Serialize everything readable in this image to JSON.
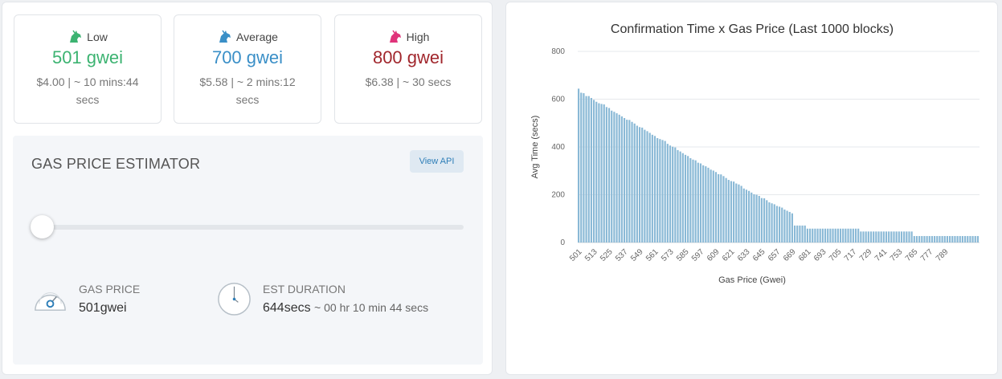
{
  "cards": [
    {
      "label": "Low",
      "price": "501 gwei",
      "detail": "$4.00 | ~ 10 mins:44 secs",
      "color": "#3cb371",
      "icon": "unicorn-icon"
    },
    {
      "label": "Average",
      "price": "700 gwei",
      "detail": "$5.58 | ~ 2 mins:12 secs",
      "color": "#3a8fc7",
      "icon": "unicorn-icon"
    },
    {
      "label": "High",
      "price": "800 gwei",
      "detail": "$6.38 | ~ 30 secs",
      "color": "#a1272d",
      "icon": "unicorn-icon"
    }
  ],
  "estimator": {
    "title": "GAS PRICE ESTIMATOR",
    "view_api": "View API",
    "slider_fraction": 0.0,
    "gas_price_label": "GAS PRICE",
    "gas_price_value": "501gwei",
    "duration_label": "EST DURATION",
    "duration_value": "644secs",
    "duration_detail": "~ 00 hr 10 min 44 secs"
  },
  "chart_data": {
    "type": "bar",
    "title": "Confirmation Time x Gas Price (Last 1000 blocks)",
    "xlabel": "Gas Price (Gwei)",
    "ylabel": "Avg Time (secs)",
    "ylim": [
      0,
      800
    ],
    "yticks": [
      0,
      200,
      400,
      600,
      800
    ],
    "grid": true,
    "bar_color": "#8ab9d6",
    "x_start": 501,
    "x_step": 2,
    "tick_labels": [
      "501",
      "513",
      "525",
      "537",
      "549",
      "561",
      "573",
      "585",
      "597",
      "609",
      "621",
      "633",
      "645",
      "657",
      "669",
      "681",
      "693",
      "705",
      "717",
      "729",
      "741",
      "753",
      "765",
      "777",
      "789"
    ],
    "values": [
      644,
      627,
      625,
      613,
      613,
      605,
      597,
      589,
      583,
      580,
      578,
      567,
      563,
      552,
      547,
      541,
      535,
      528,
      521,
      514,
      513,
      505,
      498,
      489,
      483,
      481,
      472,
      466,
      459,
      451,
      446,
      437,
      433,
      429,
      425,
      413,
      406,
      401,
      398,
      387,
      381,
      374,
      367,
      362,
      353,
      347,
      344,
      334,
      331,
      323,
      319,
      313,
      305,
      301,
      295,
      286,
      285,
      278,
      270,
      262,
      257,
      255,
      247,
      243,
      237,
      226,
      221,
      216,
      209,
      202,
      200,
      195,
      186,
      185,
      177,
      168,
      164,
      160,
      153,
      150,
      146,
      138,
      133,
      128,
      122,
      71,
      71,
      71,
      71,
      71,
      58,
      58,
      58,
      58,
      58,
      58,
      58,
      58,
      58,
      58,
      58,
      58,
      58,
      58,
      58,
      58,
      58,
      58,
      58,
      58,
      58,
      46,
      46,
      46,
      46,
      46,
      46,
      46,
      46,
      46,
      46,
      46,
      46,
      46,
      46,
      46,
      46,
      46,
      46,
      46,
      46,
      46,
      27,
      27,
      27,
      27,
      27,
      27,
      27,
      27,
      27,
      27,
      27,
      27,
      27,
      27,
      27,
      27,
      27,
      27,
      27,
      27,
      27,
      27,
      27,
      27,
      27,
      27
    ]
  }
}
